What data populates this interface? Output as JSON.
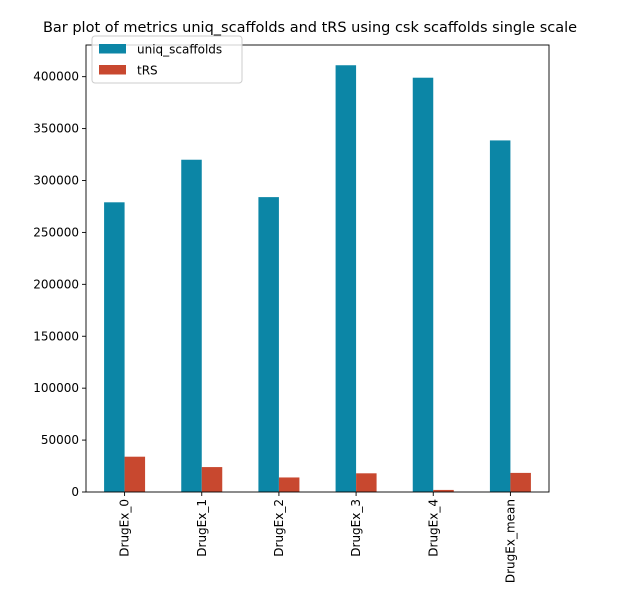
{
  "chart_data": {
    "type": "bar",
    "title": "Bar plot of metrics uniq_scaffolds and tRS using csk scaffolds single scale",
    "xlabel": "",
    "ylabel": "",
    "categories": [
      "DrugEx_0",
      "DrugEx_1",
      "DrugEx_2",
      "DrugEx_3",
      "DrugEx_4",
      "DrugEx_mean"
    ],
    "series": [
      {
        "name": "uniq_scaffolds",
        "color": "#0C86A6",
        "values": [
          279000,
          320000,
          284000,
          411000,
          399000,
          338600
        ]
      },
      {
        "name": "tRS",
        "color": "#C8482F",
        "values": [
          34000,
          24000,
          14000,
          18000,
          2000,
          18400
        ]
      }
    ],
    "ylim": [
      0,
      430500
    ],
    "yticks": [
      0,
      50000,
      100000,
      150000,
      200000,
      250000,
      300000,
      350000,
      400000
    ],
    "ytick_labels": [
      "0",
      "50000",
      "100000",
      "150000",
      "200000",
      "250000",
      "300000",
      "350000",
      "400000"
    ],
    "legend_position": "upper-left",
    "grid": false
  }
}
